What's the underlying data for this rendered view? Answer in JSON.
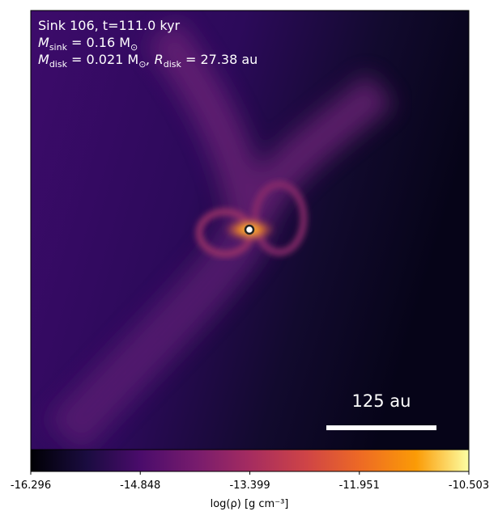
{
  "chart_data": {
    "type": "image",
    "annotations": [
      {
        "text": "Sink 106, t=111.0 kyr"
      },
      {
        "symbol": "M",
        "sub": "sink",
        "rest": " = 0.16 M",
        "unit_sub": "⊙"
      },
      {
        "symbol": "M",
        "sub": "disk",
        "rest": " = 0.021 M",
        "unit_sub": "⊙",
        "symbol2": ", R",
        "sub2": "disk",
        "rest2": " = 27.38 au"
      }
    ],
    "scalebar": {
      "value": 125,
      "label": "125 au"
    },
    "colormap": "inferno",
    "clim": [
      -16.296,
      -10.503
    ],
    "cticks": [
      -16.296,
      -14.848,
      -13.399,
      -11.951,
      -10.503
    ],
    "colorbar_label": "log(ρ) [g cm⁻³]"
  }
}
